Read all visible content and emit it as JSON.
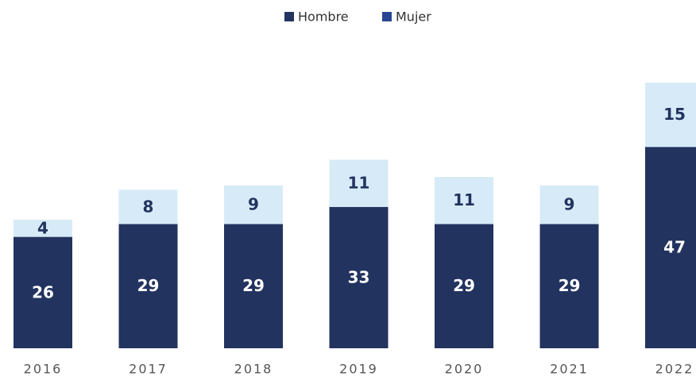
{
  "chart_data": {
    "type": "stacked_bar",
    "categories": [
      "2016",
      "2017",
      "2018",
      "2019",
      "2020",
      "2021",
      "2022"
    ],
    "series": [
      {
        "name": "Hombre",
        "color": "#22335f",
        "legend_color": "#22335f",
        "label_color": "#ffffff",
        "values": [
          26,
          29,
          29,
          33,
          29,
          29,
          47
        ]
      },
      {
        "name": "Mujer",
        "color": "#d6ebf7",
        "legend_color": "#2a4593",
        "label_color": "#22335f",
        "values": [
          4,
          8,
          9,
          11,
          11,
          9,
          15
        ]
      }
    ]
  }
}
